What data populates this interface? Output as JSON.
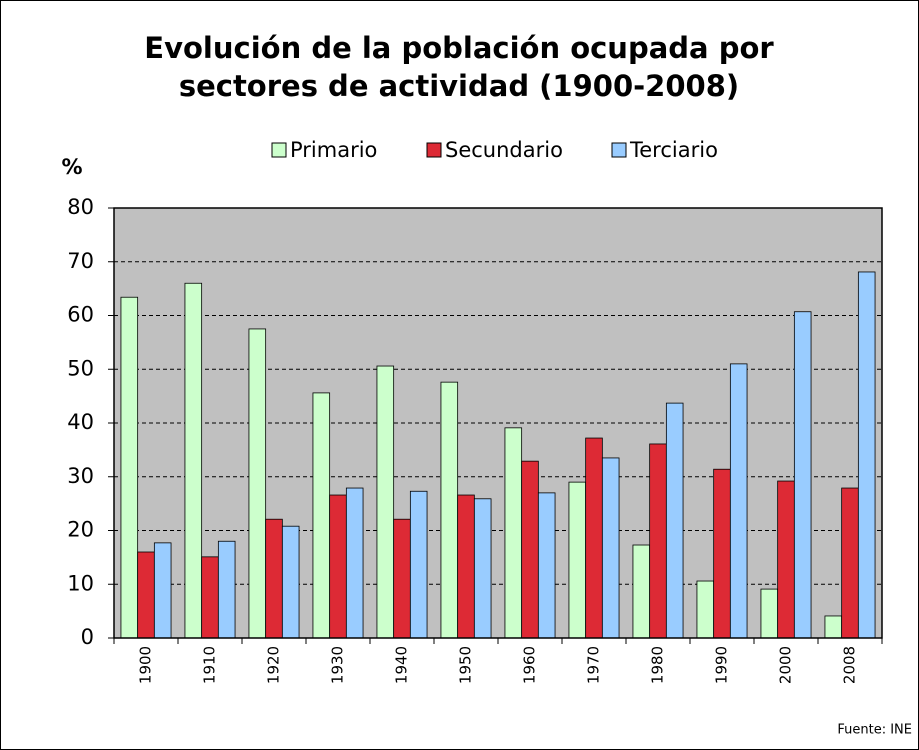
{
  "chart_data": {
    "type": "bar",
    "title": [
      "Evolución de la población ocupada por",
      "sectores de actividad (1900-2008)"
    ],
    "y_label": "%",
    "source": "Fuente: INE",
    "categories": [
      "1900",
      "1910",
      "1920",
      "1930",
      "1940",
      "1950",
      "1960",
      "1970",
      "1980",
      "1990",
      "2000",
      "2008"
    ],
    "series": [
      {
        "name": "Primario",
        "color": "#ccffcc",
        "values": [
          63.4,
          66.0,
          57.5,
          45.6,
          50.6,
          47.6,
          39.1,
          29.0,
          17.3,
          10.6,
          9.1,
          4.1
        ]
      },
      {
        "name": "Secundario",
        "color": "#dd2a35",
        "values": [
          16.0,
          15.1,
          22.1,
          26.6,
          22.1,
          26.6,
          32.9,
          37.2,
          36.1,
          31.4,
          29.2,
          27.9
        ]
      },
      {
        "name": "Terciario",
        "color": "#99ccff",
        "values": [
          17.7,
          18.0,
          20.8,
          27.9,
          27.3,
          25.9,
          27.0,
          33.5,
          43.7,
          51.0,
          60.7,
          68.1
        ]
      }
    ],
    "ylim": [
      0,
      80
    ],
    "yticks": [
      0,
      10,
      20,
      30,
      40,
      50,
      60,
      70,
      80
    ],
    "grid": true,
    "plot_background": "#c0c0c0",
    "legend": "top"
  }
}
